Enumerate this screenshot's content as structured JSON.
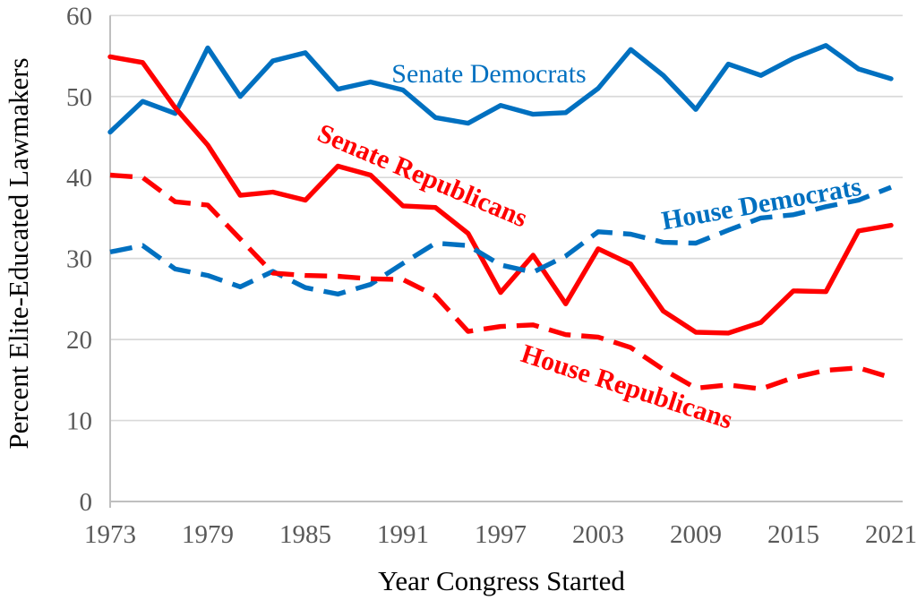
{
  "chart_data": {
    "type": "line",
    "title": "",
    "xlabel": "Year Congress Started",
    "ylabel": "Percent Elite-Educated Lawmakers",
    "x": [
      1973,
      1975,
      1977,
      1979,
      1981,
      1983,
      1985,
      1987,
      1989,
      1991,
      1993,
      1995,
      1997,
      1999,
      2001,
      2003,
      2005,
      2007,
      2009,
      2011,
      2013,
      2015,
      2017,
      2019,
      2021
    ],
    "xticks": [
      1973,
      1979,
      1985,
      1991,
      1997,
      2003,
      2009,
      2015,
      2021
    ],
    "yticks": [
      0,
      10,
      20,
      30,
      40,
      50,
      60
    ],
    "xlim": [
      1973,
      2021
    ],
    "ylim": [
      0,
      60
    ],
    "grid": "horizontal",
    "legend": "inline-labels",
    "series": [
      {
        "name": "Senate Democrats",
        "color": "#0070C0",
        "style": "solid",
        "values": [
          45.6,
          49.4,
          47.9,
          56.0,
          50.0,
          54.4,
          55.4,
          50.9,
          51.8,
          50.8,
          47.4,
          46.7,
          48.9,
          47.8,
          48.0,
          51.0,
          55.8,
          52.6,
          48.4,
          54.0,
          52.6,
          54.7,
          56.3,
          53.4,
          52.2
        ]
      },
      {
        "name": "Senate Republicans",
        "color": "#FF0000",
        "style": "solid",
        "values": [
          54.9,
          54.2,
          48.6,
          44.0,
          37.8,
          38.2,
          37.2,
          41.4,
          40.3,
          36.5,
          36.3,
          33.1,
          25.8,
          30.4,
          24.4,
          31.2,
          29.3,
          23.5,
          20.9,
          20.8,
          22.1,
          26.0,
          25.9,
          33.4,
          34.1
        ]
      },
      {
        "name": "House Democrats",
        "color": "#0070C0",
        "style": "dashed",
        "values": [
          30.8,
          31.6,
          28.7,
          27.9,
          26.5,
          28.4,
          26.4,
          25.6,
          26.8,
          29.4,
          31.9,
          31.6,
          29.2,
          28.3,
          30.3,
          33.3,
          33.0,
          32.0,
          31.9,
          33.5,
          35.0,
          35.4,
          36.4,
          37.2,
          38.8
        ]
      },
      {
        "name": "House Republicans",
        "color": "#FF0000",
        "style": "dashed",
        "values": [
          40.3,
          40.0,
          37.0,
          36.6,
          32.4,
          28.2,
          27.9,
          27.8,
          27.5,
          27.4,
          25.4,
          21.0,
          21.6,
          21.8,
          20.6,
          20.3,
          19.0,
          16.3,
          14.0,
          14.4,
          13.9,
          15.3,
          16.2,
          16.5,
          15.3
        ]
      }
    ],
    "colors": {
      "democrat_blue": "#0070C0",
      "republican_red": "#FF0000",
      "tick_label_gray": "#595959",
      "axis_line_gray": "#BFBFBF",
      "gridline_gray": "#D9D9D9"
    }
  }
}
